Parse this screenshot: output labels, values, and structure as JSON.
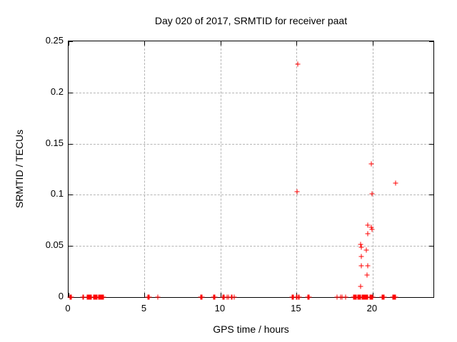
{
  "chart_data": {
    "type": "scatter",
    "title": "Day 020 of 2017, SRMTID for receiver paat",
    "xlabel": "GPS time / hours",
    "ylabel": "SRMTID / TECUs",
    "xlim": [
      0,
      24
    ],
    "ylim": [
      0,
      0.25
    ],
    "xticks": [
      0,
      5,
      10,
      15,
      20
    ],
    "yticks": [
      0,
      0.05,
      0.1,
      0.15,
      0.2,
      0.25
    ],
    "grid": true,
    "legend": "none",
    "marker": "plus",
    "marker_color": "#ff0000",
    "axis_color": "#000000",
    "grid_color": "#b5b5b5",
    "series": [
      {
        "name": "SRMTID",
        "points": [
          [
            0.1,
            0
          ],
          [
            0.15,
            0
          ],
          [
            0.2,
            0
          ],
          [
            0.95,
            0
          ],
          [
            1.0,
            0
          ],
          [
            1.2,
            0
          ],
          [
            1.25,
            0
          ],
          [
            1.3,
            0
          ],
          [
            1.35,
            0
          ],
          [
            1.4,
            0
          ],
          [
            1.45,
            0
          ],
          [
            1.5,
            0
          ],
          [
            1.65,
            0
          ],
          [
            1.7,
            0
          ],
          [
            1.75,
            0
          ],
          [
            1.8,
            0
          ],
          [
            1.85,
            0
          ],
          [
            1.9,
            0
          ],
          [
            1.95,
            0
          ],
          [
            2.0,
            0
          ],
          [
            2.05,
            0
          ],
          [
            2.1,
            0
          ],
          [
            2.15,
            0
          ],
          [
            2.2,
            0
          ],
          [
            2.25,
            0
          ],
          [
            2.3,
            0
          ],
          [
            5.2,
            0
          ],
          [
            5.25,
            0
          ],
          [
            5.3,
            0
          ],
          [
            5.85,
            0
          ],
          [
            8.7,
            0
          ],
          [
            8.75,
            0
          ],
          [
            8.8,
            0
          ],
          [
            9.55,
            0
          ],
          [
            9.6,
            0
          ],
          [
            9.65,
            0
          ],
          [
            10.15,
            0
          ],
          [
            10.2,
            0
          ],
          [
            10.25,
            0
          ],
          [
            10.45,
            0
          ],
          [
            10.5,
            0
          ],
          [
            10.7,
            0
          ],
          [
            10.75,
            0
          ],
          [
            10.9,
            0
          ],
          [
            14.7,
            0
          ],
          [
            14.75,
            0
          ],
          [
            14.8,
            0
          ],
          [
            15.0,
            0
          ],
          [
            15.05,
            0
          ],
          [
            15.1,
            0
          ],
          [
            15.15,
            0
          ],
          [
            15.75,
            0
          ],
          [
            15.8,
            0
          ],
          [
            15.85,
            0
          ],
          [
            17.65,
            0
          ],
          [
            17.9,
            0
          ],
          [
            18.0,
            0
          ],
          [
            18.2,
            0
          ],
          [
            18.75,
            0
          ],
          [
            18.8,
            0
          ],
          [
            18.85,
            0
          ],
          [
            18.9,
            0
          ],
          [
            18.95,
            0
          ],
          [
            19.0,
            0
          ],
          [
            19.05,
            0
          ],
          [
            19.1,
            0
          ],
          [
            19.15,
            0
          ],
          [
            19.2,
            0
          ],
          [
            19.3,
            0
          ],
          [
            19.35,
            0
          ],
          [
            19.4,
            0
          ],
          [
            19.45,
            0
          ],
          [
            19.5,
            0
          ],
          [
            19.55,
            0
          ],
          [
            19.6,
            0
          ],
          [
            19.65,
            0
          ],
          [
            19.7,
            0
          ],
          [
            19.8,
            0
          ],
          [
            19.85,
            0
          ],
          [
            19.9,
            0
          ],
          [
            19.95,
            0
          ],
          [
            20.0,
            0
          ],
          [
            20.6,
            0
          ],
          [
            20.65,
            0
          ],
          [
            20.7,
            0
          ],
          [
            20.75,
            0
          ],
          [
            21.3,
            0
          ],
          [
            21.35,
            0
          ],
          [
            21.4,
            0
          ],
          [
            21.45,
            0
          ],
          [
            21.5,
            0
          ],
          [
            15.02,
            0.103
          ],
          [
            15.07,
            0.228
          ],
          [
            19.2,
            0.0105
          ],
          [
            19.65,
            0.0215
          ],
          [
            19.25,
            0.0305
          ],
          [
            19.7,
            0.0305
          ],
          [
            19.25,
            0.0395
          ],
          [
            19.6,
            0.046
          ],
          [
            19.2,
            0.0515
          ],
          [
            19.25,
            0.049
          ],
          [
            19.67,
            0.062
          ],
          [
            19.67,
            0.07
          ],
          [
            19.9,
            0.0685
          ],
          [
            19.95,
            0.066
          ],
          [
            19.95,
            0.101
          ],
          [
            19.9,
            0.13
          ],
          [
            21.5,
            0.1115
          ]
        ]
      }
    ]
  }
}
